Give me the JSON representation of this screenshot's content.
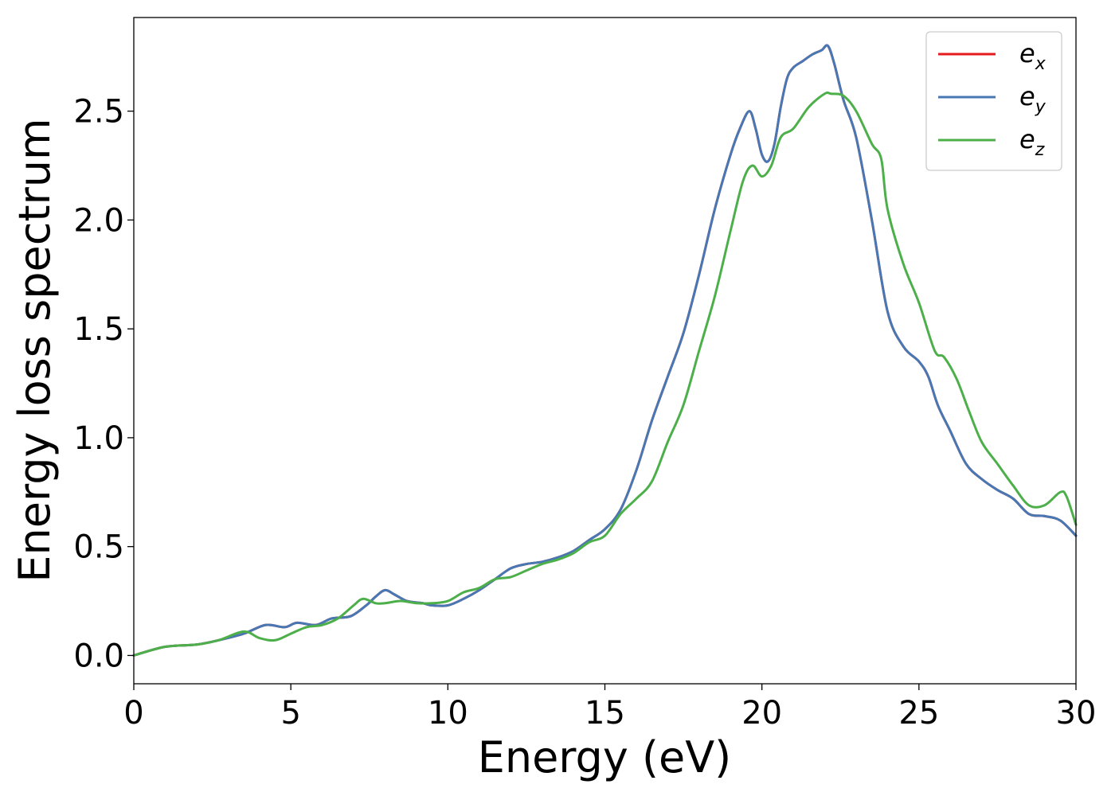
{
  "chart_data": {
    "type": "line",
    "title": "",
    "xlabel": "Energy (eV)",
    "ylabel": "Energy loss spectrum",
    "xlim": [
      0,
      30
    ],
    "ylim": [
      -0.13,
      2.93
    ],
    "xticks": [
      0,
      5,
      10,
      15,
      20,
      25,
      30
    ],
    "xtick_labels": [
      "0",
      "5",
      "10",
      "15",
      "20",
      "25",
      "30"
    ],
    "yticks": [
      0.0,
      0.5,
      1.0,
      1.5,
      2.0,
      2.5
    ],
    "ytick_labels": [
      "0.0",
      "0.5",
      "1.0",
      "1.5",
      "2.0",
      "2.5"
    ],
    "grid": false,
    "legend_position": "top-right",
    "series": [
      {
        "name": "e_x",
        "label_base": "e",
        "label_sub": "x",
        "color": "#e41a1c",
        "x": [
          0,
          1,
          2,
          2.7,
          3.5,
          4.2,
          4.8,
          5.2,
          5.8,
          6.3,
          6.9,
          7.4,
          7.7,
          8.0,
          8.3,
          8.7,
          9.2,
          9.5,
          10,
          10.5,
          11,
          11.5,
          12,
          12.5,
          13,
          13.5,
          14,
          14.5,
          15,
          15.5,
          16,
          16.5,
          17,
          17.5,
          18,
          18.5,
          19,
          19.3,
          19.6,
          19.8,
          20,
          20.2,
          20.4,
          20.6,
          20.8,
          21,
          21.3,
          21.6,
          21.9,
          22.1,
          22.3,
          22.6,
          23,
          23.5,
          24,
          24.5,
          25,
          25.3,
          25.6,
          26,
          26.5,
          27,
          27.5,
          28,
          28.5,
          29,
          29.5,
          30
        ],
        "values": [
          0.0,
          0.04,
          0.05,
          0.07,
          0.1,
          0.14,
          0.13,
          0.15,
          0.14,
          0.17,
          0.18,
          0.23,
          0.27,
          0.3,
          0.28,
          0.25,
          0.24,
          0.23,
          0.23,
          0.26,
          0.3,
          0.35,
          0.4,
          0.42,
          0.43,
          0.45,
          0.48,
          0.53,
          0.58,
          0.67,
          0.85,
          1.08,
          1.28,
          1.48,
          1.75,
          2.05,
          2.3,
          2.42,
          2.5,
          2.42,
          2.3,
          2.27,
          2.35,
          2.52,
          2.65,
          2.7,
          2.73,
          2.76,
          2.78,
          2.8,
          2.72,
          2.55,
          2.38,
          2.0,
          1.58,
          1.42,
          1.35,
          1.28,
          1.15,
          1.03,
          0.88,
          0.81,
          0.76,
          0.72,
          0.65,
          0.64,
          0.62,
          0.55
        ]
      },
      {
        "name": "e_y",
        "label_base": "e",
        "label_sub": "y",
        "color": "#4878b4",
        "x": [
          0,
          1,
          2,
          2.7,
          3.5,
          4.2,
          4.8,
          5.2,
          5.8,
          6.3,
          6.9,
          7.4,
          7.7,
          8.0,
          8.3,
          8.7,
          9.2,
          9.5,
          10,
          10.5,
          11,
          11.5,
          12,
          12.5,
          13,
          13.5,
          14,
          14.5,
          15,
          15.5,
          16,
          16.5,
          17,
          17.5,
          18,
          18.5,
          19,
          19.3,
          19.6,
          19.8,
          20,
          20.2,
          20.4,
          20.6,
          20.8,
          21,
          21.3,
          21.6,
          21.9,
          22.1,
          22.3,
          22.6,
          23,
          23.5,
          24,
          24.5,
          25,
          25.3,
          25.6,
          26,
          26.5,
          27,
          27.5,
          28,
          28.5,
          29,
          29.5,
          30
        ],
        "values": [
          0.0,
          0.04,
          0.05,
          0.07,
          0.1,
          0.14,
          0.13,
          0.15,
          0.14,
          0.17,
          0.18,
          0.23,
          0.27,
          0.3,
          0.28,
          0.25,
          0.24,
          0.23,
          0.23,
          0.26,
          0.3,
          0.35,
          0.4,
          0.42,
          0.43,
          0.45,
          0.48,
          0.53,
          0.58,
          0.67,
          0.85,
          1.08,
          1.28,
          1.48,
          1.75,
          2.05,
          2.3,
          2.42,
          2.5,
          2.42,
          2.3,
          2.27,
          2.35,
          2.52,
          2.65,
          2.7,
          2.73,
          2.76,
          2.78,
          2.8,
          2.72,
          2.55,
          2.38,
          2.0,
          1.58,
          1.42,
          1.35,
          1.28,
          1.15,
          1.03,
          0.88,
          0.81,
          0.76,
          0.72,
          0.65,
          0.64,
          0.62,
          0.55
        ]
      },
      {
        "name": "e_z",
        "label_base": "e",
        "label_sub": "z",
        "color": "#4daf4a",
        "x": [
          0,
          1,
          2,
          2.7,
          3.5,
          4.0,
          4.5,
          5.0,
          5.5,
          6.0,
          6.5,
          7.0,
          7.3,
          7.7,
          8.0,
          8.5,
          9.0,
          9.5,
          10,
          10.5,
          11,
          11.5,
          12,
          12.5,
          13,
          13.5,
          14,
          14.5,
          15,
          15.5,
          16,
          16.5,
          17,
          17.5,
          18,
          18.5,
          19,
          19.4,
          19.7,
          20,
          20.3,
          20.6,
          21,
          21.5,
          22,
          22.2,
          22.6,
          23,
          23.5,
          23.8,
          24,
          24.5,
          25,
          25.5,
          25.8,
          26.2,
          26.6,
          27,
          27.5,
          28,
          28.5,
          29,
          29.5,
          29.7,
          30
        ],
        "values": [
          0.0,
          0.04,
          0.05,
          0.07,
          0.11,
          0.08,
          0.07,
          0.1,
          0.13,
          0.14,
          0.17,
          0.23,
          0.26,
          0.24,
          0.24,
          0.25,
          0.24,
          0.24,
          0.25,
          0.29,
          0.31,
          0.35,
          0.36,
          0.39,
          0.42,
          0.44,
          0.47,
          0.52,
          0.55,
          0.65,
          0.72,
          0.8,
          0.98,
          1.15,
          1.4,
          1.65,
          1.95,
          2.18,
          2.25,
          2.2,
          2.25,
          2.38,
          2.42,
          2.52,
          2.58,
          2.58,
          2.57,
          2.5,
          2.35,
          2.28,
          2.05,
          1.8,
          1.62,
          1.4,
          1.37,
          1.27,
          1.12,
          0.98,
          0.88,
          0.78,
          0.69,
          0.69,
          0.75,
          0.73,
          0.6
        ]
      }
    ]
  }
}
